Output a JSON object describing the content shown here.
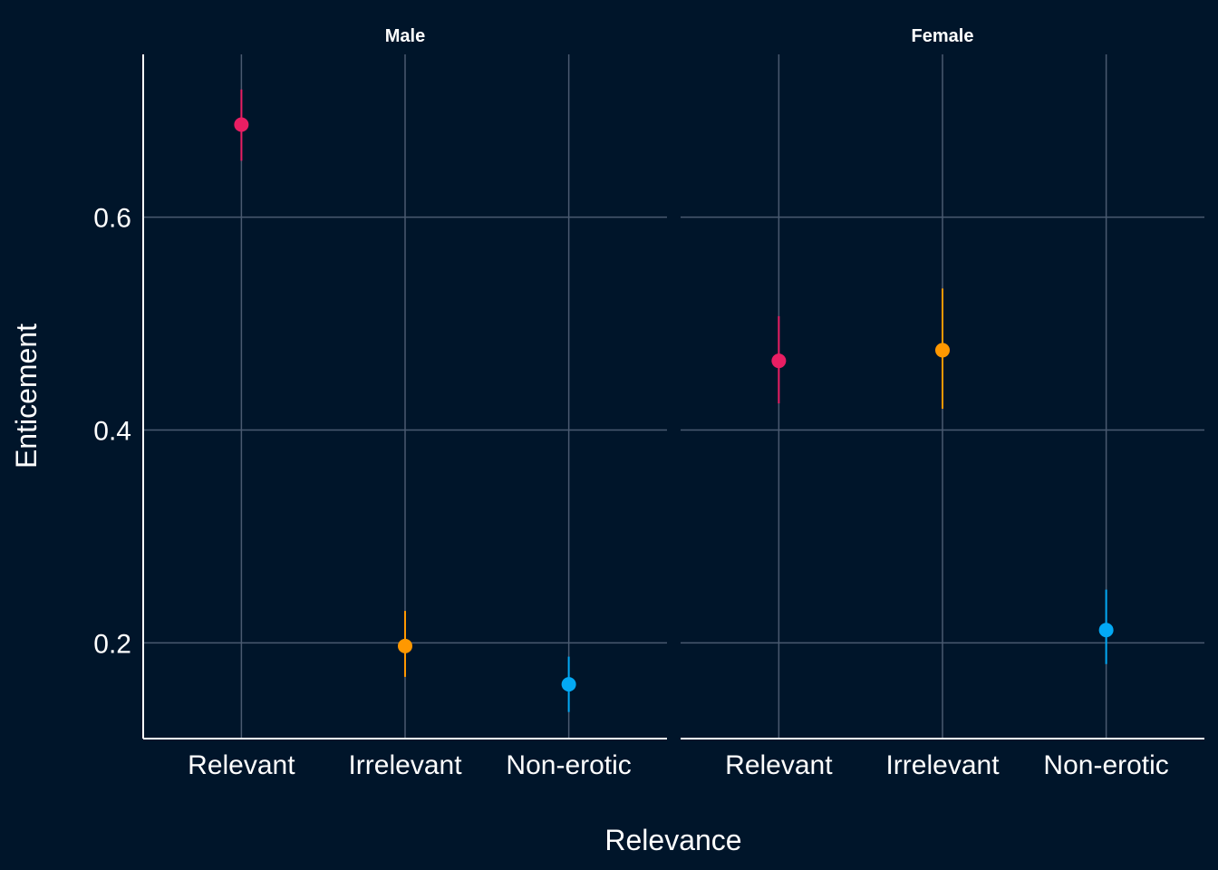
{
  "chart_data": {
    "type": "scatter",
    "subtype": "pointrange",
    "xlabel": "Relevance",
    "ylabel": "Enticement",
    "categories": [
      "Relevant",
      "Irrelevant",
      "Non-erotic"
    ],
    "category_colors": [
      "#E91E63",
      "#FF9800",
      "#03A9F4"
    ],
    "ylim": [
      0.11,
      0.753
    ],
    "yticks": [
      0.2,
      0.4,
      0.6
    ],
    "ytick_labels": [
      "0.2",
      "0.4",
      "0.6"
    ],
    "grid": true,
    "legend": "none",
    "background": "#00152A",
    "grid_color": "#4A5A70",
    "text_color": "#FFFFFF",
    "panels": [
      {
        "name": "Male",
        "points": [
          {
            "category": "Relevant",
            "y": 0.687,
            "ymin": 0.653,
            "ymax": 0.72
          },
          {
            "category": "Irrelevant",
            "y": 0.197,
            "ymin": 0.168,
            "ymax": 0.23
          },
          {
            "category": "Non-erotic",
            "y": 0.161,
            "ymin": 0.135,
            "ymax": 0.187
          }
        ]
      },
      {
        "name": "Female",
        "points": [
          {
            "category": "Relevant",
            "y": 0.465,
            "ymin": 0.425,
            "ymax": 0.507
          },
          {
            "category": "Irrelevant",
            "y": 0.475,
            "ymin": 0.42,
            "ymax": 0.533
          },
          {
            "category": "Non-erotic",
            "y": 0.212,
            "ymin": 0.18,
            "ymax": 0.25
          }
        ]
      }
    ]
  }
}
